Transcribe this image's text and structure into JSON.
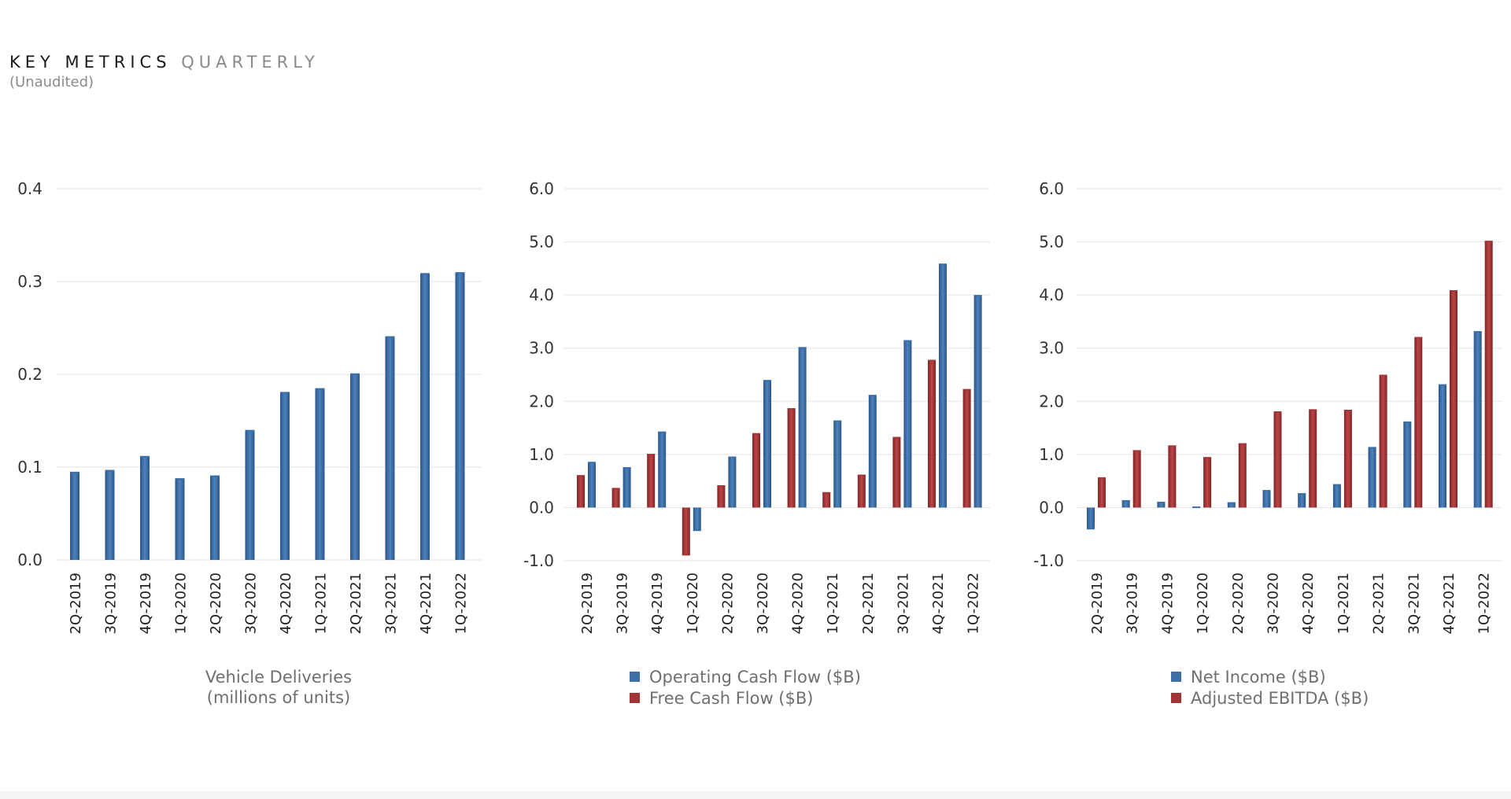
{
  "header": {
    "title": "KEY METRICS",
    "title_suffix": "QUARTERLY",
    "subtitle": "(Unaudited)"
  },
  "colors": {
    "blue": "#3b6fa6",
    "red": "#a33536",
    "grid": "#e3e3e3"
  },
  "chart_data": [
    {
      "type": "bar",
      "caption": [
        "Vehicle Deliveries",
        "(millions of units)"
      ],
      "categories": [
        "2Q-2019",
        "3Q-2019",
        "4Q-2019",
        "1Q-2020",
        "2Q-2020",
        "3Q-2020",
        "4Q-2020",
        "1Q-2021",
        "2Q-2021",
        "3Q-2021",
        "4Q-2021",
        "1Q-2022"
      ],
      "ylim": [
        0,
        0.4
      ],
      "yticks": [
        "0.0",
        "0.1",
        "0.2",
        "0.3",
        "0.4"
      ],
      "legend": [],
      "series": [
        {
          "name": "Vehicle Deliveries",
          "color": "blue",
          "values": [
            0.095,
            0.097,
            0.112,
            0.088,
            0.091,
            0.14,
            0.181,
            0.185,
            0.201,
            0.241,
            0.309,
            0.31
          ]
        }
      ]
    },
    {
      "type": "bar",
      "caption": [],
      "categories": [
        "2Q-2019",
        "3Q-2019",
        "4Q-2019",
        "1Q-2020",
        "2Q-2020",
        "3Q-2020",
        "4Q-2020",
        "1Q-2021",
        "2Q-2021",
        "3Q-2021",
        "4Q-2021",
        "1Q-2022"
      ],
      "ylim": [
        -1,
        6
      ],
      "yticks": [
        "-1.0",
        "0.0",
        "1.0",
        "2.0",
        "3.0",
        "4.0",
        "5.0",
        "6.0"
      ],
      "legend": [
        "Operating Cash Flow ($B)",
        "Free Cash Flow ($B)"
      ],
      "series": [
        {
          "name": "Free Cash Flow ($B)",
          "color": "red",
          "values": [
            0.61,
            0.37,
            1.01,
            -0.9,
            0.42,
            1.4,
            1.87,
            0.29,
            0.62,
            1.33,
            2.78,
            2.23
          ]
        },
        {
          "name": "Operating Cash Flow ($B)",
          "color": "blue",
          "values": [
            0.86,
            0.76,
            1.43,
            -0.44,
            0.96,
            2.4,
            3.02,
            1.64,
            2.12,
            3.15,
            4.59,
            4.0
          ]
        }
      ]
    },
    {
      "type": "bar",
      "caption": [],
      "categories": [
        "2Q-2019",
        "3Q-2019",
        "4Q-2019",
        "1Q-2020",
        "2Q-2020",
        "3Q-2020",
        "4Q-2020",
        "1Q-2021",
        "2Q-2021",
        "3Q-2021",
        "4Q-2021",
        "1Q-2022"
      ],
      "ylim": [
        -1,
        6
      ],
      "yticks": [
        "-1.0",
        "0.0",
        "1.0",
        "2.0",
        "3.0",
        "4.0",
        "5.0",
        "6.0"
      ],
      "legend": [
        "Net Income ($B)",
        "Adjusted EBITDA ($B)"
      ],
      "series": [
        {
          "name": "Net Income ($B)",
          "color": "blue",
          "values": [
            -0.41,
            0.14,
            0.11,
            0.02,
            0.1,
            0.33,
            0.27,
            0.44,
            1.14,
            1.62,
            2.32,
            3.32
          ]
        },
        {
          "name": "Adjusted EBITDA ($B)",
          "color": "red",
          "values": [
            0.57,
            1.08,
            1.17,
            0.95,
            1.21,
            1.81,
            1.85,
            1.84,
            2.5,
            3.21,
            4.09,
            5.02
          ]
        }
      ]
    }
  ]
}
